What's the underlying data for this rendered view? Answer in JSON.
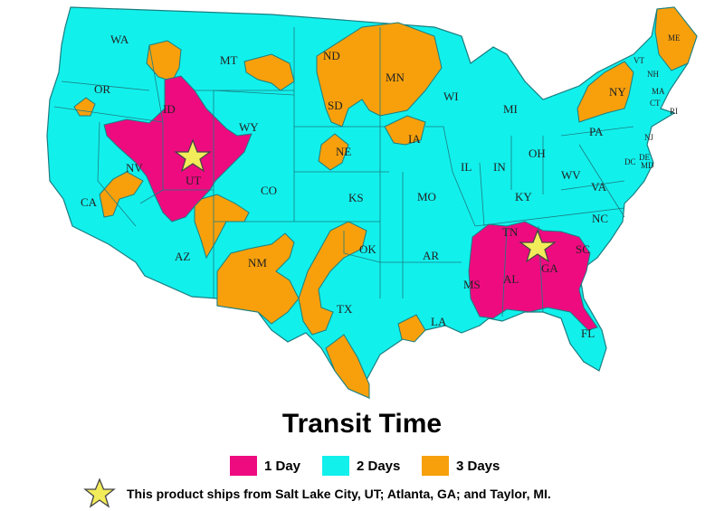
{
  "colors": {
    "one_day": "#ee0b80",
    "two_days": "#12f0ec",
    "three_days": "#f7a00c",
    "border": "#1a7e80",
    "star": "#f3ec5a"
  },
  "title": "Transit Time",
  "legend": [
    {
      "label": "1 Day",
      "color": "#ee0b80"
    },
    {
      "label": "2 Days",
      "color": "#12f0ec"
    },
    {
      "label": "3 Days",
      "color": "#f7a00c"
    }
  ],
  "note": "This product ships from Salt Lake City, UT; Atlanta, GA; and Taylor, MI.",
  "states": [
    "WA",
    "OR",
    "CA",
    "ID",
    "NV",
    "MT",
    "WY",
    "UT",
    "AZ",
    "CO",
    "NM",
    "ND",
    "SD",
    "NE",
    "KS",
    "OK",
    "TX",
    "MN",
    "IA",
    "MO",
    "AR",
    "LA",
    "WI",
    "IL",
    "MI",
    "IN",
    "OH",
    "KY",
    "TN",
    "MS",
    "AL",
    "GA",
    "FL",
    "SC",
    "NC",
    "VA",
    "WV",
    "PA",
    "NY",
    "VT",
    "NH",
    "ME",
    "MA",
    "RI",
    "CT",
    "NJ",
    "DE",
    "MD",
    "DC"
  ],
  "ship_origins": [
    "Salt Lake City, UT",
    "Atlanta, GA",
    "Taylor, MI"
  ]
}
